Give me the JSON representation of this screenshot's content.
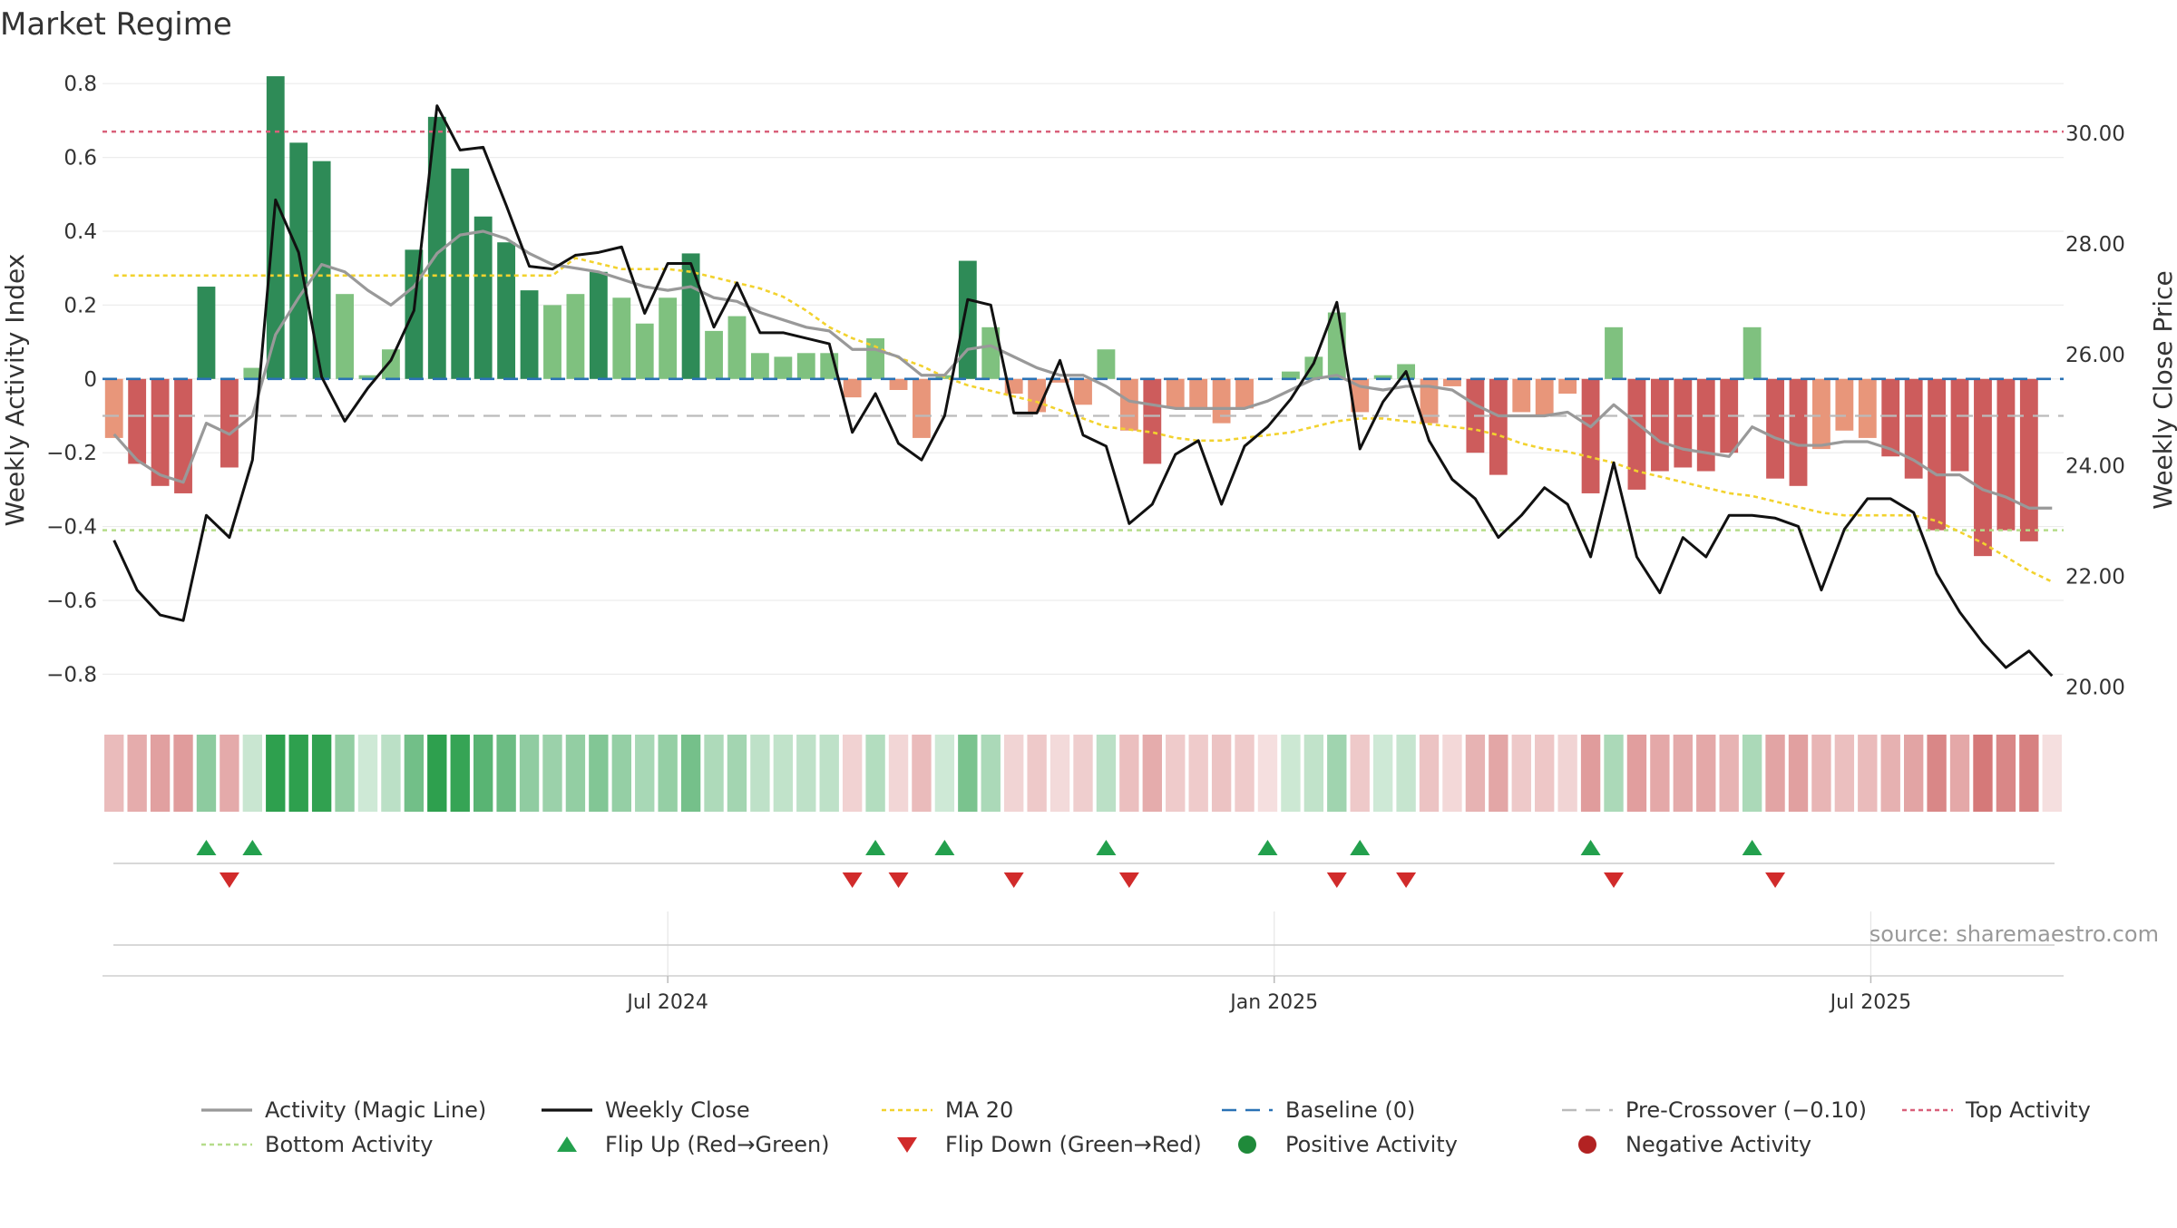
{
  "title": "Market Regime",
  "source": "source: sharemaestro.com",
  "colors": {
    "magic": "#999999",
    "close": "#111111",
    "ma": "#f2d22e",
    "baseline": "#2a72b5",
    "precross": "#bbbbbb",
    "top": "#d9607a",
    "bottom": "#b5dc8a",
    "pos_dark": "#2e8b57",
    "pos_light": "#7fc17f",
    "neg_dark": "#cd5c5c",
    "neg_light": "#e8967a",
    "flip_up": "#23a04d",
    "flip_down": "#d12b2b",
    "pos_dot": "#1f8a3a",
    "neg_dot": "#b22222"
  },
  "chart_data": {
    "type": "bar",
    "weeks": 85,
    "x_start": "2024-01-15",
    "left_axis": {
      "label": "Weekly Activity Index",
      "ylim": [
        -0.89,
        0.83
      ],
      "ticks": [
        0.8,
        0.6,
        0.4,
        0.2,
        0,
        -0.2,
        -0.4,
        -0.6,
        -0.8
      ],
      "tick_labels": [
        "0.8",
        "0.6",
        "0.4",
        "0.2",
        "0",
        "−0.2",
        "−0.4",
        "−0.6",
        "−0.8"
      ]
    },
    "right_axis": {
      "label": "Weekly Close Price",
      "ylim": [
        19.63,
        31.1
      ],
      "ticks": [
        30,
        28,
        26,
        24,
        22,
        20
      ],
      "tick_labels": [
        "30.00",
        "28.00",
        "26.00",
        "24.00",
        "22.00",
        "20.00"
      ]
    },
    "x_ticks": [
      {
        "date": "2024-07-01",
        "label": "Jul 2024"
      },
      {
        "date": "2025-01-01",
        "label": "Jan 2025"
      },
      {
        "date": "2025-07-01",
        "label": "Jul 2025"
      }
    ],
    "top_activity": 0.67,
    "bottom_activity": -0.41,
    "pre_crossover": -0.1,
    "baseline": 0,
    "ma20_level_early": 0.28,
    "activity": [
      -0.16,
      -0.23,
      -0.29,
      -0.31,
      0.25,
      -0.24,
      0.03,
      0.82,
      0.64,
      0.59,
      0.23,
      0.01,
      0.08,
      0.35,
      0.71,
      0.57,
      0.44,
      0.37,
      0.24,
      0.2,
      0.23,
      0.29,
      0.22,
      0.15,
      0.22,
      0.34,
      0.13,
      0.17,
      0.07,
      0.06,
      0.07,
      0.07,
      -0.05,
      0.11,
      -0.03,
      -0.16,
      0.01,
      0.32,
      0.14,
      -0.04,
      -0.09,
      -0.01,
      -0.07,
      0.08,
      -0.14,
      -0.23,
      -0.08,
      -0.08,
      -0.12,
      -0.08,
      0.0,
      0.02,
      0.06,
      0.18,
      -0.09,
      0.01,
      0.04,
      -0.12,
      -0.02,
      -0.2,
      -0.26,
      -0.09,
      -0.1,
      -0.04,
      -0.31,
      0.14,
      -0.3,
      -0.25,
      -0.24,
      -0.25,
      -0.2,
      0.14,
      -0.27,
      -0.29,
      -0.19,
      -0.14,
      -0.16,
      -0.21,
      -0.27,
      -0.41,
      -0.25,
      -0.48,
      -0.41,
      -0.44,
      0.0
    ],
    "magic_line": [
      -0.15,
      -0.22,
      -0.26,
      -0.28,
      -0.12,
      -0.15,
      -0.1,
      0.12,
      0.22,
      0.31,
      0.29,
      0.24,
      0.2,
      0.25,
      0.34,
      0.39,
      0.4,
      0.38,
      0.34,
      0.31,
      0.3,
      0.29,
      0.27,
      0.25,
      0.24,
      0.25,
      0.22,
      0.21,
      0.18,
      0.16,
      0.14,
      0.13,
      0.08,
      0.08,
      0.06,
      0.01,
      0.01,
      0.08,
      0.09,
      0.06,
      0.03,
      0.01,
      0.01,
      -0.02,
      -0.06,
      -0.07,
      -0.08,
      -0.08,
      -0.08,
      -0.08,
      -0.06,
      -0.03,
      0.0,
      0.01,
      -0.02,
      -0.03,
      -0.02,
      -0.02,
      -0.03,
      -0.07,
      -0.1,
      -0.1,
      -0.1,
      -0.09,
      -0.13,
      -0.07,
      -0.12,
      -0.17,
      -0.19,
      -0.2,
      -0.21,
      -0.13,
      -0.16,
      -0.18,
      -0.18,
      -0.17,
      -0.17,
      -0.19,
      -0.22,
      -0.26,
      -0.26,
      -0.3,
      -0.32,
      -0.35,
      -0.35
    ],
    "ma20": [
      null,
      null,
      null,
      null,
      null,
      null,
      null,
      null,
      null,
      null,
      null,
      null,
      null,
      null,
      null,
      null,
      null,
      null,
      null,
      null,
      27.75,
      27.65,
      27.55,
      27.55,
      27.55,
      27.5,
      27.4,
      27.3,
      27.2,
      27.05,
      26.8,
      26.5,
      26.3,
      26.15,
      25.95,
      25.8,
      25.6,
      25.45,
      25.35,
      25.25,
      25.15,
      25.0,
      24.85,
      24.7,
      24.65,
      24.6,
      24.5,
      24.45,
      24.45,
      24.5,
      24.55,
      24.6,
      24.7,
      24.8,
      24.85,
      24.85,
      24.8,
      24.75,
      24.7,
      24.65,
      24.55,
      24.4,
      24.3,
      24.25,
      24.15,
      24.05,
      23.9,
      23.8,
      23.7,
      23.6,
      23.5,
      23.45,
      23.35,
      23.25,
      23.15,
      23.1,
      23.1,
      23.1,
      23.1,
      23.0,
      22.8,
      22.6,
      22.35,
      22.1,
      21.9
    ],
    "weekly_close": [
      22.65,
      21.75,
      21.3,
      21.2,
      23.1,
      22.7,
      24.1,
      28.8,
      27.85,
      25.6,
      24.8,
      25.4,
      25.9,
      26.8,
      30.5,
      29.7,
      29.75,
      28.7,
      27.6,
      27.55,
      27.8,
      27.85,
      27.95,
      26.75,
      27.65,
      27.65,
      26.5,
      27.3,
      26.4,
      26.4,
      26.3,
      26.2,
      24.6,
      25.3,
      24.4,
      24.1,
      24.9,
      27.0,
      26.9,
      24.95,
      24.95,
      25.9,
      24.55,
      24.35,
      22.95,
      23.3,
      24.2,
      24.45,
      23.3,
      24.35,
      24.7,
      25.2,
      25.85,
      26.95,
      24.3,
      25.15,
      25.7,
      24.45,
      23.75,
      23.4,
      22.7,
      23.1,
      23.6,
      23.3,
      22.35,
      24.05,
      22.35,
      21.7,
      22.7,
      22.35,
      23.1,
      23.1,
      23.05,
      22.9,
      21.75,
      22.85,
      23.4,
      23.4,
      23.15,
      22.05,
      21.35,
      20.8,
      20.35,
      20.65,
      20.2
    ],
    "flip_up_weeks": [
      4,
      6,
      33,
      36,
      43,
      50,
      54,
      64,
      71
    ],
    "flip_down_weeks": [
      5,
      32,
      34,
      39,
      44,
      53,
      56,
      65,
      72
    ],
    "legend": [
      {
        "label": "Activity (Magic Line)",
        "kind": "line",
        "color": "#999999"
      },
      {
        "label": "Weekly Close",
        "kind": "line",
        "color": "#111111"
      },
      {
        "label": "MA 20",
        "kind": "dotline",
        "color": "#f2d22e"
      },
      {
        "label": "Baseline (0)",
        "kind": "dashline",
        "color": "#2a72b5"
      },
      {
        "label": "Pre-Crossover (−0.10)",
        "kind": "dashline",
        "color": "#bbbbbb"
      },
      {
        "label": "Top Activity",
        "kind": "dotline",
        "color": "#d9607a"
      },
      {
        "label": "Bottom Activity",
        "kind": "dotline",
        "color": "#b5dc8a"
      },
      {
        "label": "Flip Up (Red→Green)",
        "kind": "tri-up",
        "color": "#23a04d"
      },
      {
        "label": "Flip Down (Green→Red)",
        "kind": "tri-down",
        "color": "#d12b2b"
      },
      {
        "label": "Positive Activity",
        "kind": "dot",
        "color": "#1f8a3a"
      },
      {
        "label": "Negative Activity",
        "kind": "dot",
        "color": "#b22222"
      }
    ]
  }
}
